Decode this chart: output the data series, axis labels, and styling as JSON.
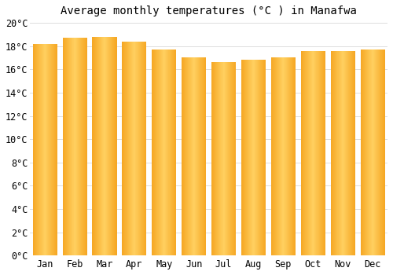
{
  "title": "Average monthly temperatures (°C ) in Manafwa",
  "months": [
    "Jan",
    "Feb",
    "Mar",
    "Apr",
    "May",
    "Jun",
    "Jul",
    "Aug",
    "Sep",
    "Oct",
    "Nov",
    "Dec"
  ],
  "values": [
    18.2,
    18.7,
    18.8,
    18.4,
    17.7,
    17.0,
    16.6,
    16.8,
    17.0,
    17.6,
    17.6,
    17.7
  ],
  "bar_color_edge": "#F5A623",
  "bar_color_center": "#FFD060",
  "background_color": "#FFFFFF",
  "grid_color": "#DDDDDD",
  "ylim": [
    0,
    20
  ],
  "ytick_step": 2,
  "title_fontsize": 10,
  "tick_fontsize": 8.5,
  "bar_width": 0.82
}
